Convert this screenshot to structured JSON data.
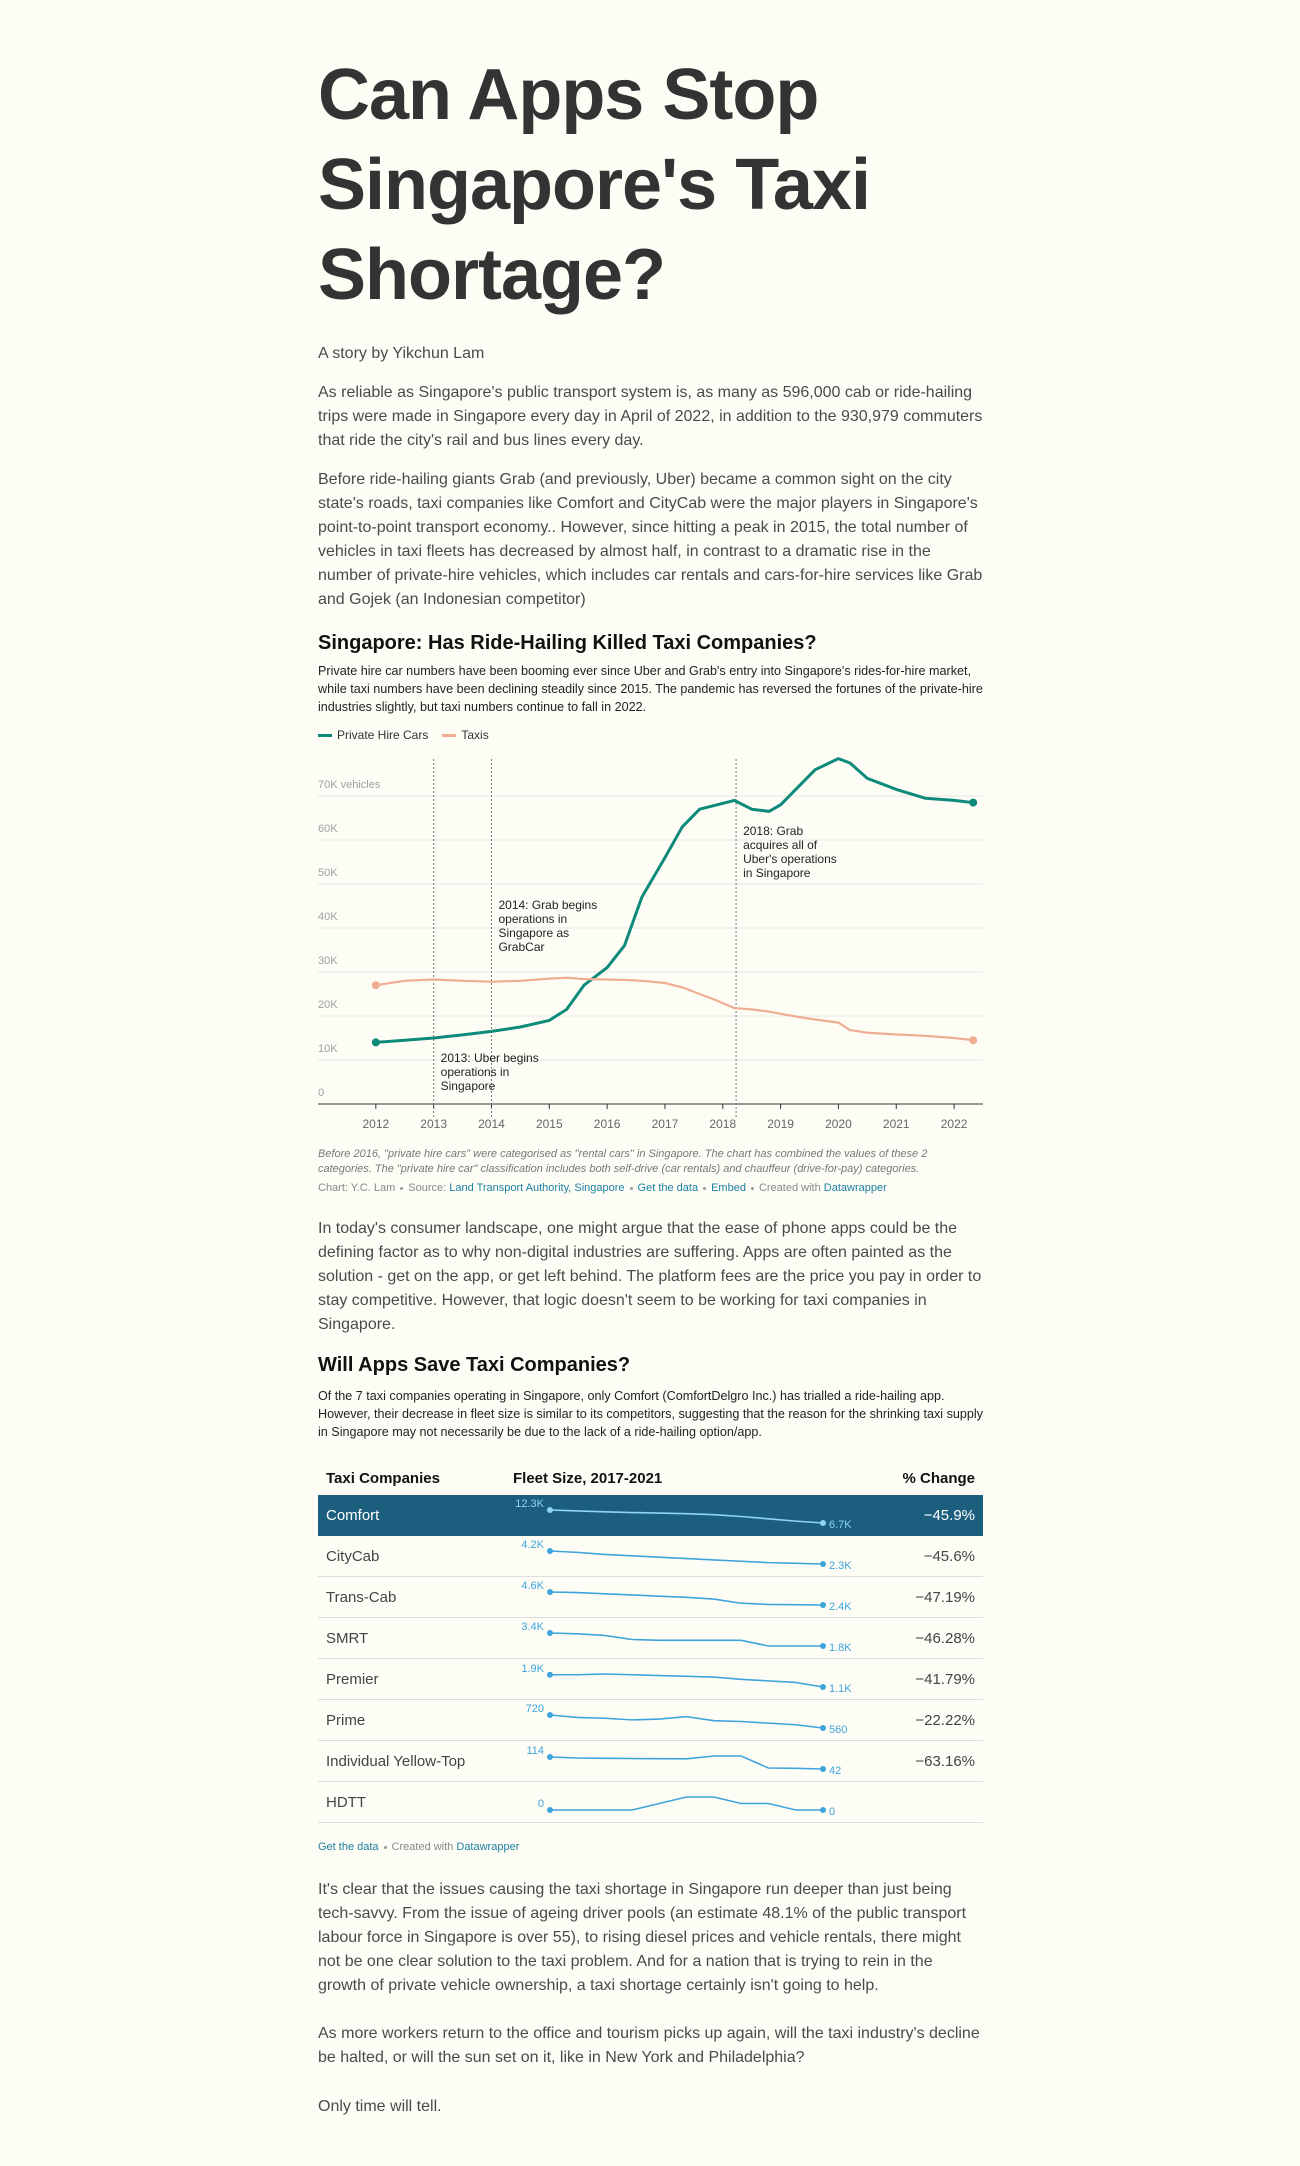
{
  "header": {
    "title": "Can Apps Stop Singapore's Taxi Shortage?",
    "byline": "A story by Yikchun Lam"
  },
  "intro": [
    "As reliable as Singapore's public transport system is, as many as 596,000 cab or ride-hailing trips were made in Singapore every day in April of 2022, in addition to the 930,979 commuters that ride the city's rail and bus lines every day.",
    "Before ride-hailing giants Grab (and previously, Uber) became a common sight on the city state's roads, taxi companies like Comfort and CityCab were the major players in Singapore's point-to-point transport economy.. However, since hitting a peak in 2015, the total number of vehicles in taxi fleets has decreased by almost half, in contrast to a dramatic rise in the number of private-hire vehicles, which includes car rentals and cars-for-hire services like Grab and Gojek (an Indonesian competitor)"
  ],
  "chart_data": {
    "type": "line",
    "title": "Singapore: Has Ride-Hailing Killed Taxi Companies?",
    "subtitle": "Private hire car numbers have been booming ever since Uber and Grab's entry into Singapore's rides-for-hire market, while taxi numbers have been declining steadily since 2015. The pandemic has reversed the fortunes of the private-hire industries slightly, but taxi numbers continue to fall in 2022.",
    "x": [
      2012,
      2012.5,
      2013,
      2013.5,
      2014,
      2014.5,
      2015,
      2015.3,
      2015.6,
      2016,
      2016.3,
      2016.6,
      2017,
      2017.3,
      2017.6,
      2017.9,
      2018.2,
      2018.5,
      2018.8,
      2019,
      2019.3,
      2019.6,
      2020,
      2020.2,
      2020.5,
      2021,
      2021.5,
      2022,
      2022.33
    ],
    "series": [
      {
        "name": "Private Hire Cars",
        "color": "#0e8a7a",
        "values": [
          14000,
          14500,
          15000,
          15700,
          16500,
          17500,
          19000,
          21500,
          27000,
          31000,
          36000,
          47000,
          56000,
          63000,
          67000,
          68000,
          69000,
          67000,
          66500,
          68000,
          72000,
          76000,
          78500,
          77500,
          74000,
          71500,
          69500,
          69000,
          68500
        ]
      },
      {
        "name": "Taxis",
        "color": "#f0ad92",
        "values": [
          27000,
          28000,
          28300,
          28000,
          27800,
          28000,
          28500,
          28700,
          28400,
          28300,
          28200,
          28000,
          27500,
          26500,
          25000,
          23500,
          21800,
          21500,
          21000,
          20500,
          19800,
          19200,
          18500,
          16800,
          16200,
          15800,
          15500,
          15000,
          14500
        ]
      }
    ],
    "xlim": [
      2011,
      2022.5
    ],
    "xticks": [
      2012,
      2013,
      2014,
      2015,
      2016,
      2017,
      2018,
      2019,
      2020,
      2021,
      2022
    ],
    "ylim": [
      0,
      80000
    ],
    "yticks": [
      0,
      {
        "value": 10000,
        "label": "10K"
      },
      {
        "value": 20000,
        "label": "20K"
      },
      {
        "value": 30000,
        "label": "30K"
      },
      {
        "value": 40000,
        "label": "40K"
      },
      {
        "value": 50000,
        "label": "50K"
      },
      {
        "value": 60000,
        "label": "60K"
      },
      {
        "value": 70000,
        "label": "70K vehicles"
      }
    ],
    "grid": true,
    "legend": "top-left",
    "events": [
      {
        "x": 2013,
        "label": "2013: Uber begins operations in Singapore"
      },
      {
        "x": 2014,
        "label": "2014: Grab begins operations in Singapore as GrabCar"
      },
      {
        "x": 2018.23,
        "label": "2018: Grab acquires all of Uber's operations in Singapore"
      }
    ],
    "notes": "Before 2016, \"private hire cars\" were categorised as \"rental cars\" in Singapore. The chart has combined the values of these 2 categories. The \"private hire car\" classification includes both self-drive (car rentals) and chauffeur (drive-for-pay) categories.",
    "credit": "Chart: Y.C. Lam",
    "source_label": "Source:",
    "source": "Land Transport Authority, Singapore",
    "links": [
      "Get the data",
      "Embed"
    ],
    "created": "Created with",
    "tool": "Datawrapper"
  },
  "middle": [
    "In today's consumer landscape, one might argue that the ease of phone apps could be the defining factor as to why non-digital industries are suffering. Apps are often painted as the solution - get on the app, or get left behind. The platform fees are the price you pay in order to stay competitive. However, that logic doesn't seem to be working for taxi companies in Singapore."
  ],
  "table": {
    "title": "Will Apps Save Taxi Companies?",
    "description": "Of the 7 taxi companies operating in Singapore, only Comfort (ComfortDelgro Inc.) has trialled a ride-hailing app. However, their decrease in fleet size is similar to its competitors, suggesting that the reason for the shrinking taxi supply in Singapore may not necessarily be due to the lack of a ride-hailing option/app.",
    "columns": [
      "Taxi Companies",
      "Fleet Size, 2017-2021",
      "% Change"
    ],
    "rows": [
      {
        "name": "Comfort",
        "values": [
          12300,
          11900,
          11500,
          11200,
          11000,
          10700,
          10300,
          9500,
          8500,
          7500,
          6700
        ],
        "value_labels": [
          "12.3K",
          null,
          null,
          null,
          null,
          null,
          null,
          null,
          null,
          null,
          "6.7K"
        ],
        "change": "−45.9%"
      },
      {
        "name": "CityCab",
        "values": [
          4200,
          4000,
          3700,
          3500,
          3300,
          3100,
          2900,
          2700,
          2500,
          2400,
          2300
        ],
        "value_labels": [
          "4.2K",
          null,
          null,
          null,
          null,
          null,
          null,
          null,
          null,
          null,
          "2.3K"
        ],
        "change": "−45.6%"
      },
      {
        "name": "Trans-Cab",
        "values": [
          4600,
          4500,
          4300,
          4100,
          3900,
          3700,
          3400,
          2700,
          2500,
          2450,
          2400
        ],
        "value_labels": [
          "4.6K",
          null,
          null,
          null,
          null,
          null,
          null,
          null,
          null,
          null,
          "2.4K"
        ],
        "change": "−47.19%"
      },
      {
        "name": "SMRT",
        "values": [
          3400,
          3300,
          3100,
          2600,
          2500,
          2500,
          2500,
          2500,
          1800,
          1800,
          1800
        ],
        "value_labels": [
          "3.4K",
          null,
          null,
          null,
          null,
          null,
          null,
          null,
          null,
          null,
          "1.8K"
        ],
        "change": "−46.28%"
      },
      {
        "name": "Premier",
        "values": [
          1900,
          1900,
          1950,
          1900,
          1850,
          1800,
          1750,
          1600,
          1500,
          1400,
          1100
        ],
        "value_labels": [
          "1.9K",
          null,
          null,
          null,
          null,
          null,
          null,
          null,
          null,
          null,
          "1.1K"
        ],
        "change": "−41.79%"
      },
      {
        "name": "Prime",
        "values": [
          720,
          690,
          680,
          660,
          670,
          700,
          650,
          640,
          620,
          600,
          560
        ],
        "change": "−22.22%"
      },
      {
        "name": "Individual Yellow-Top",
        "values": [
          114,
          108,
          106,
          105,
          104,
          103,
          120,
          120,
          48,
          46,
          42
        ],
        "change": "−63.16%"
      },
      {
        "name": "HDTT",
        "values": [
          0,
          0,
          0,
          0,
          1,
          2,
          2,
          1,
          1,
          0,
          0
        ]
      }
    ],
    "footer_link": "Get the data",
    "created": "Created with",
    "tool": "Datawrapper"
  },
  "closing": [
    "It's clear that the issues causing the taxi shortage in Singapore run deeper than just being tech-savvy. From the issue of ageing driver pools (an estimate 48.1% of the public transport labour force in Singapore is over 55), to rising diesel prices and vehicle rentals, there might not be one clear solution to the taxi problem. And for a nation that is trying to rein in the growth of private vehicle ownership, a taxi shortage certainly isn't going to help.",
    "As more workers return to the office and tourism picks up again, will the taxi industry's decline be halted, or will the sun set on it, like in New York and Philadelphia?",
    "Only time will tell."
  ]
}
